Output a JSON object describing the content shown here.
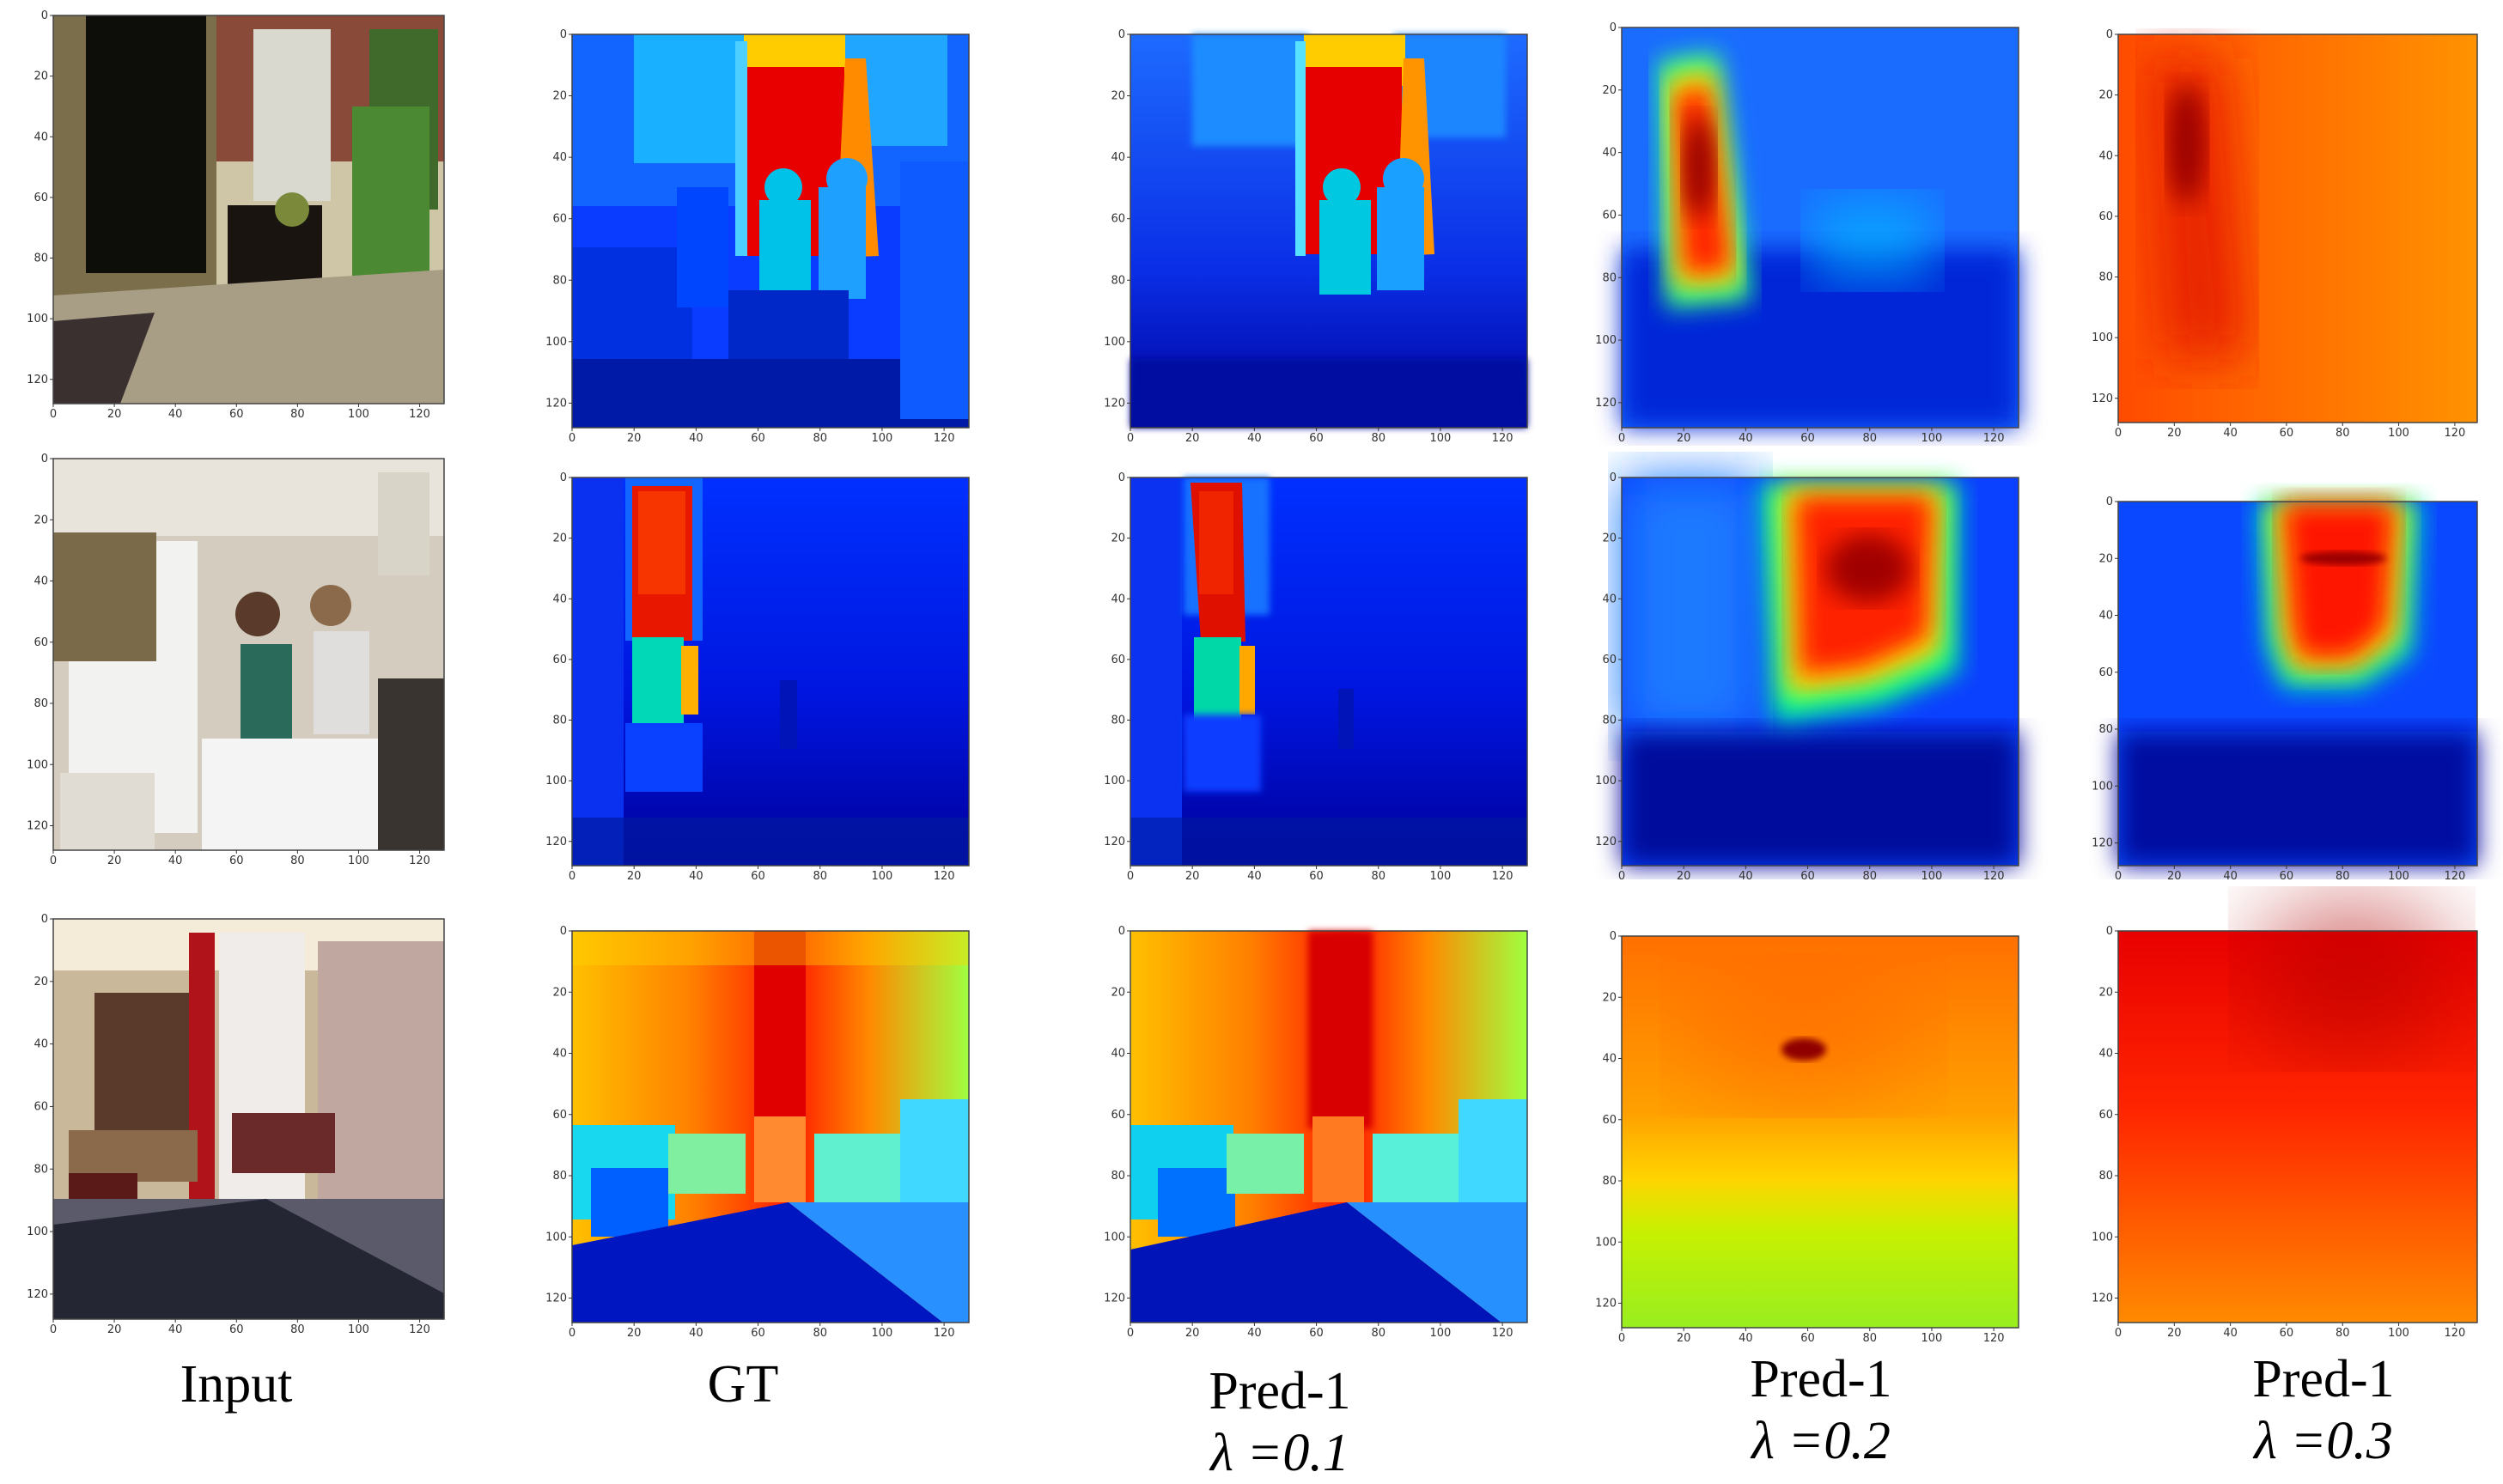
{
  "figure": {
    "column_labels": [
      {
        "title": "Input",
        "lambda_text": ""
      },
      {
        "title": "GT",
        "lambda_text": ""
      },
      {
        "title": "Pred-1",
        "lambda_text": "λ =0.1"
      },
      {
        "title": "Pred-1",
        "lambda_text": "λ =0.2"
      },
      {
        "title": "Pred-1",
        "lambda_text": "λ =0.3"
      }
    ],
    "axis_ticks": {
      "x": [
        "0",
        "20",
        "40",
        "60",
        "80",
        "100",
        "120"
      ],
      "y": [
        "0",
        "20",
        "40",
        "60",
        "80",
        "100",
        "120"
      ]
    },
    "rows": [
      {
        "scene": "living room with window and standing people",
        "panels": [
          {
            "kind": "photo",
            "content": "doorway, brick walls, window, table with plants"
          },
          {
            "kind": "depth-map",
            "colormap": "jet",
            "content": "ground truth depth"
          },
          {
            "kind": "depth-map",
            "colormap": "jet",
            "content": "predicted depth"
          },
          {
            "kind": "depth-map",
            "colormap": "jet",
            "content": "predicted depth"
          },
          {
            "kind": "depth-map",
            "colormap": "jet",
            "content": "predicted depth"
          }
        ]
      },
      {
        "scene": "kitchen with two people and refrigerator",
        "panels": [
          {
            "kind": "photo",
            "content": "kitchen, refrigerator, two women"
          },
          {
            "kind": "depth-map",
            "colormap": "jet",
            "content": "ground truth depth"
          },
          {
            "kind": "depth-map",
            "colormap": "jet",
            "content": "predicted depth"
          },
          {
            "kind": "depth-map",
            "colormap": "jet",
            "content": "predicted depth"
          },
          {
            "kind": "depth-map",
            "colormap": "jet",
            "content": "predicted depth"
          }
        ]
      },
      {
        "scene": "lounge with bookshelf and table",
        "panels": [
          {
            "kind": "photo",
            "content": "bookshelf, chairs, dark table top"
          },
          {
            "kind": "depth-map",
            "colormap": "jet",
            "content": "ground truth depth"
          },
          {
            "kind": "depth-map",
            "colormap": "jet",
            "content": "predicted depth"
          },
          {
            "kind": "depth-map",
            "colormap": "jet",
            "content": "predicted depth"
          },
          {
            "kind": "depth-map",
            "colormap": "jet",
            "content": "predicted depth"
          }
        ]
      }
    ]
  },
  "colors": {
    "jet_dark_blue": "#00008f",
    "jet_blue": "#0000ff",
    "jet_cyan": "#00ffff",
    "jet_yellow": "#ffff00",
    "jet_red": "#ff0000",
    "jet_dark_red": "#800000"
  }
}
